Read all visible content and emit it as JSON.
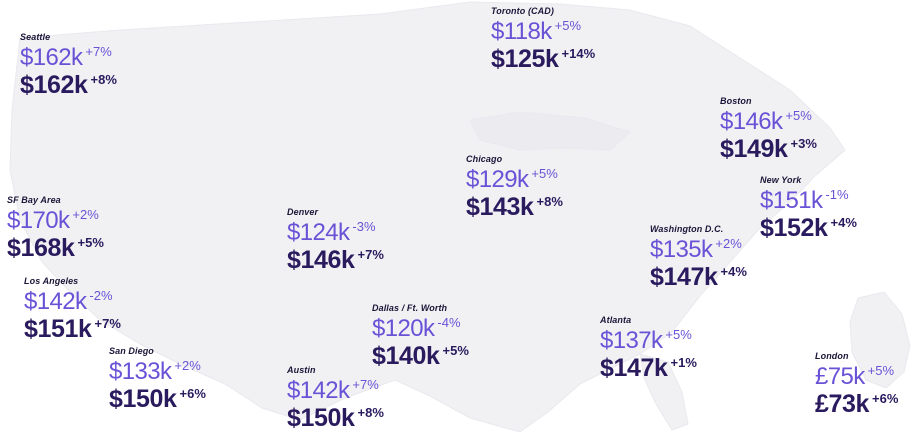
{
  "cities": [
    {
      "id": "seattle",
      "name": "Seattle",
      "value_1": "$162k",
      "change_1": "+7%",
      "value_2": "$162k",
      "change_2": "+8%"
    },
    {
      "id": "toronto",
      "name": "Toronto (CAD)",
      "value_1": "$118k",
      "change_1": "+5%",
      "value_2": "$125k",
      "change_2": "+14%"
    },
    {
      "id": "boston",
      "name": "Boston",
      "value_1": "$146k",
      "change_1": "+5%",
      "value_2": "$149k",
      "change_2": "+3%"
    },
    {
      "id": "chicago",
      "name": "Chicago",
      "value_1": "$129k",
      "change_1": "+5%",
      "value_2": "$143k",
      "change_2": "+8%"
    },
    {
      "id": "new-york",
      "name": "New York",
      "value_1": "$151k",
      "change_1": "-1%",
      "value_2": "$152k",
      "change_2": "+4%"
    },
    {
      "id": "sf-bay-area",
      "name": "SF Bay Area",
      "value_1": "$170k",
      "change_1": "+2%",
      "value_2": "$168k",
      "change_2": "+5%"
    },
    {
      "id": "denver",
      "name": "Denver",
      "value_1": "$124k",
      "change_1": "-3%",
      "value_2": "$146k",
      "change_2": "+7%"
    },
    {
      "id": "washington-dc",
      "name": "Washington D.C.",
      "value_1": "$135k",
      "change_1": "+2%",
      "value_2": "$147k",
      "change_2": "+4%"
    },
    {
      "id": "los-angeles",
      "name": "Los Angeles",
      "value_1": "$142k",
      "change_1": "-2%",
      "value_2": "$151k",
      "change_2": "+7%"
    },
    {
      "id": "dallas-ft-worth",
      "name": "Dallas / Ft. Worth",
      "value_1": "$120k",
      "change_1": "-4%",
      "value_2": "$140k",
      "change_2": "+5%"
    },
    {
      "id": "atlanta",
      "name": "Atlanta",
      "value_1": "$137k",
      "change_1": "+5%",
      "value_2": "$147k",
      "change_2": "+1%"
    },
    {
      "id": "san-diego",
      "name": "San Diego",
      "value_1": "$133k",
      "change_1": "+2%",
      "value_2": "$150k",
      "change_2": "+6%"
    },
    {
      "id": "austin",
      "name": "Austin",
      "value_1": "$142k",
      "change_1": "+7%",
      "value_2": "$150k",
      "change_2": "+8%"
    },
    {
      "id": "london",
      "name": "London",
      "value_1": "£75k",
      "change_1": "+5%",
      "value_2": "£73k",
      "change_2": "+6%"
    }
  ],
  "colors": {
    "value_1": "#6a52d6",
    "value_2": "#2a1a5e",
    "city_name": "#1c1638",
    "landmass": "#f1f1f4"
  }
}
